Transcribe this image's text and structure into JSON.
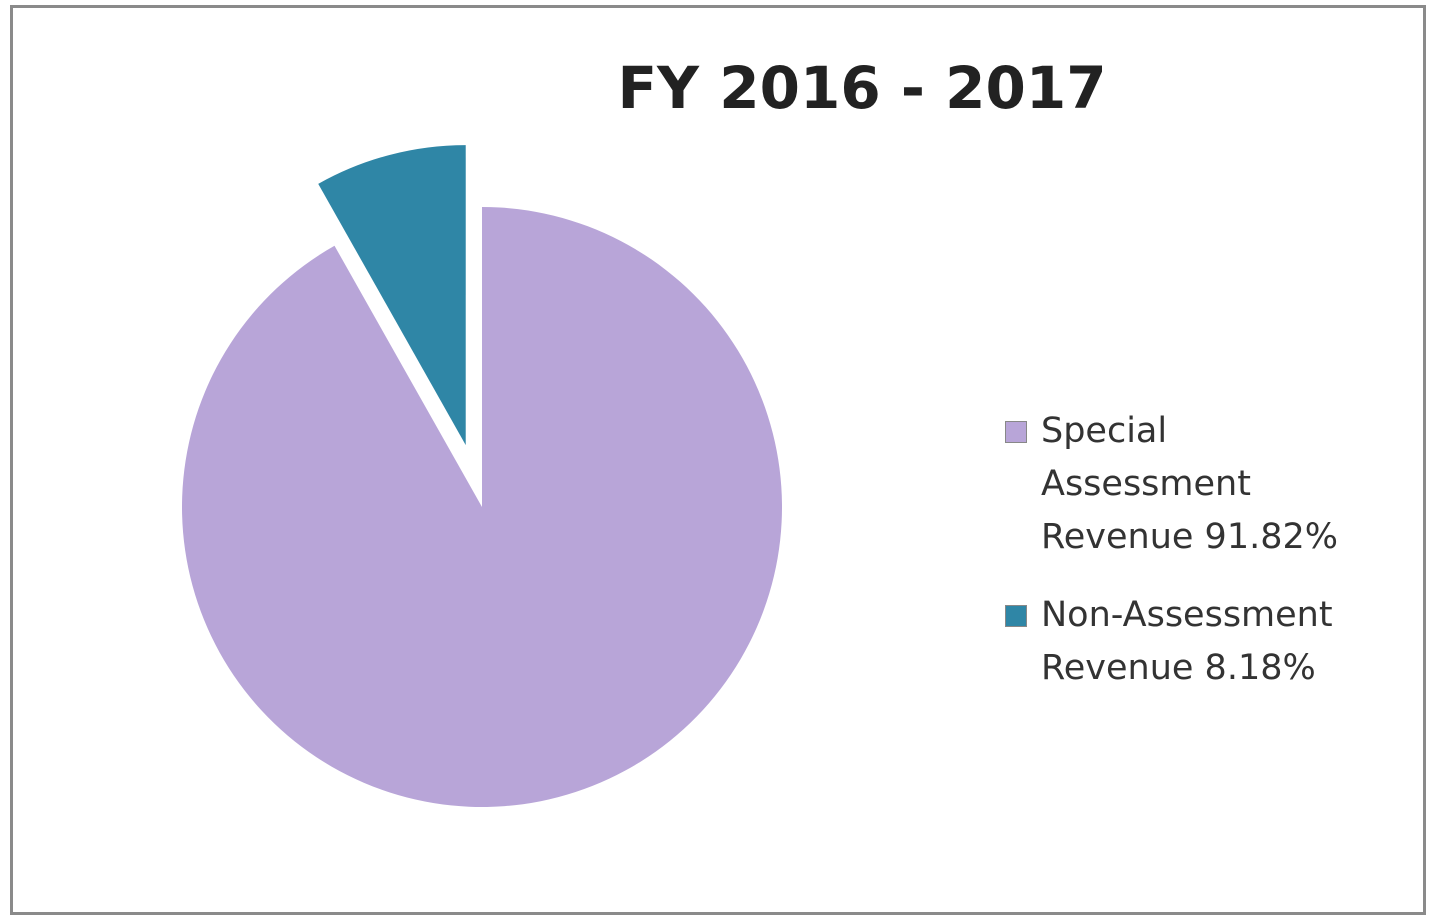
{
  "chart_data": {
    "type": "pie",
    "title": "FY 2016 - 2017",
    "categories": [
      "Special Assessment Revenue 91.82%",
      "Non-Assessment Revenue 8.18%"
    ],
    "values": [
      91.82,
      8.18
    ],
    "colors": [
      "#b8a5d8",
      "#2f86a6"
    ],
    "exploded": [
      false,
      true
    ],
    "legend": "right"
  }
}
